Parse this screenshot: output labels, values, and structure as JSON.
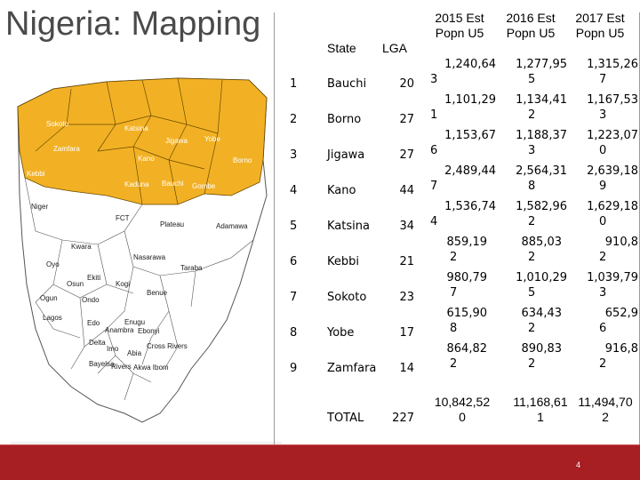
{
  "slide": {
    "title": "Nigeria: Mapping",
    "page_number": "4"
  },
  "map": {
    "highlight_color": "#f2b124",
    "base_color": "#ffffff",
    "states_labeled": [
      "Sokoto",
      "Katsina",
      "Zamfara",
      "Jigawa",
      "Yobe",
      "Kano",
      "Borno",
      "Kebbi",
      "Kaduna",
      "Bauchi",
      "Gombe",
      "Niger",
      "Nasarawa",
      "Plateau",
      "Adamawa",
      "Kwara",
      "Benue",
      "Taraba",
      "Oyo",
      "Osun",
      "Ekiti",
      "Kogi",
      "Ogun",
      "Lagos",
      "Ondo",
      "Edo",
      "Enugu",
      "Anambra",
      "Ebonyi",
      "Delta",
      "Imo",
      "Abia",
      "Cross Rivers",
      "Rivers",
      "Akwa Ibom",
      "Bayelsa",
      "FCT"
    ]
  },
  "table": {
    "headers": {
      "state": "State",
      "lga": "LGA",
      "est2015": [
        "2015 Est",
        "Popn U5"
      ],
      "est2016": [
        "2016 Est",
        "Popn U5"
      ],
      "est2017": [
        "2017 Est",
        "Popn U5"
      ]
    },
    "rows": [
      {
        "n": "1",
        "state": "Bauchi",
        "lga": "20",
        "e2015": [
          "1,240,64",
          "3"
        ],
        "e2016": [
          "1,277,95",
          "5"
        ],
        "e2017": [
          "1,315,26",
          "7"
        ]
      },
      {
        "n": "2",
        "state": "Borno",
        "lga": "27",
        "e2015": [
          "1,101,29",
          "1"
        ],
        "e2016": [
          "1,134,41",
          "2"
        ],
        "e2017": [
          "1,167,53",
          "3"
        ]
      },
      {
        "n": "3",
        "state": "Jigawa",
        "lga": "27",
        "e2015": [
          "1,153,67",
          "6"
        ],
        "e2016": [
          "1,188,37",
          "3"
        ],
        "e2017": [
          "1,223,07",
          "0"
        ]
      },
      {
        "n": "4",
        "state": "Kano",
        "lga": "44",
        "e2015": [
          "2,489,44",
          "7"
        ],
        "e2016": [
          "2,564,31",
          "8"
        ],
        "e2017": [
          "2,639,18",
          "9"
        ]
      },
      {
        "n": "5",
        "state": "Katsina",
        "lga": "34",
        "e2015": [
          "1,536,74",
          "4"
        ],
        "e2016": [
          "1,582,96",
          "2"
        ],
        "e2017": [
          "1,629,18",
          "0"
        ]
      },
      {
        "n": "6",
        "state": "Kebbi",
        "lga": "21",
        "e2015": [
          "859,19",
          "2"
        ],
        "e2016": [
          "885,03",
          "2"
        ],
        "e2017": [
          "910,8",
          "2"
        ]
      },
      {
        "n": "7",
        "state": "Sokoto",
        "lga": "23",
        "e2015": [
          "980,79",
          "7"
        ],
        "e2016": [
          "1,010,29",
          "5"
        ],
        "e2017": [
          "1,039,79",
          "3"
        ]
      },
      {
        "n": "8",
        "state": "Yobe",
        "lga": "17",
        "e2015": [
          "615,90",
          "8"
        ],
        "e2016": [
          "634,43",
          "2"
        ],
        "e2017": [
          "652,9",
          "6"
        ]
      },
      {
        "n": "9",
        "state": "Zamfara",
        "lga": "14",
        "e2015": [
          "864,82",
          "2"
        ],
        "e2016": [
          "890,83",
          "2"
        ],
        "e2017": [
          "916,8",
          "2"
        ]
      }
    ],
    "total": {
      "label": "TOTAL",
      "lga": "227",
      "e2015": [
        "10,842,52",
        "0"
      ],
      "e2016": [
        "11,168,61",
        "1"
      ],
      "e2017": [
        "11,494,70",
        "2"
      ]
    }
  },
  "colors": {
    "footer": "#a71f23",
    "title": "#4a4a4a"
  }
}
